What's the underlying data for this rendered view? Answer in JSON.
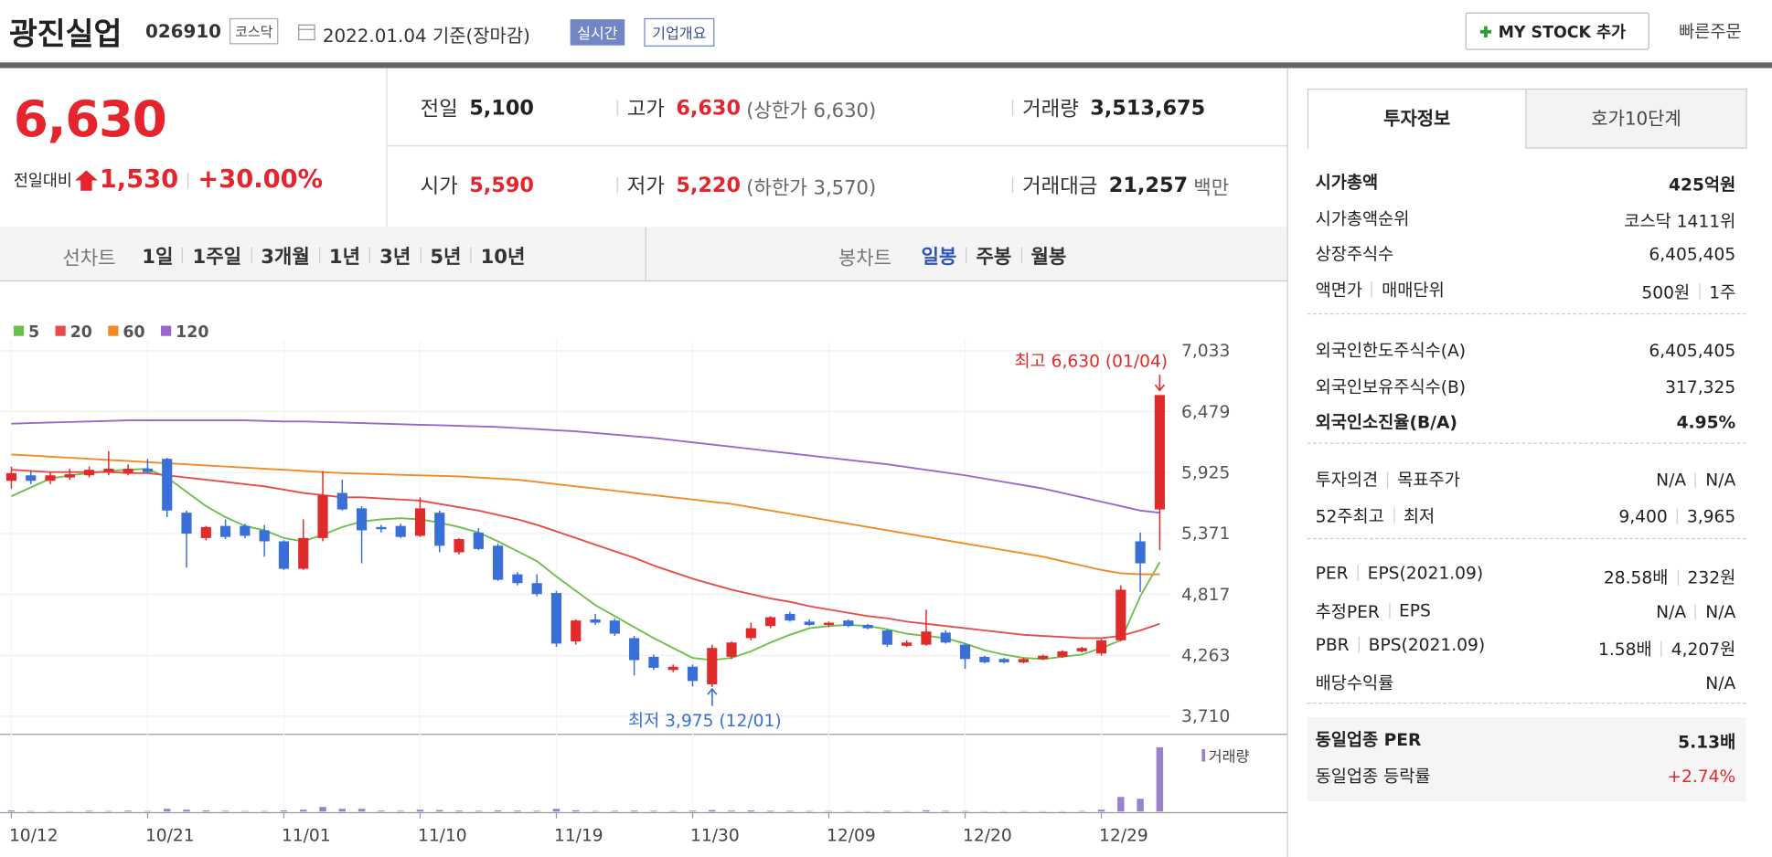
{
  "header": {
    "name": "광진실업",
    "code": "026910",
    "market": "코스닥",
    "date": "2022.01.04 기준(장마감)",
    "badges": [
      "실시간",
      "기업개요"
    ],
    "buttons": [
      "MY STOCK 추가",
      "빠른주문"
    ]
  },
  "price": {
    "current": "6,630",
    "change_label": "전일대비",
    "change": "1,530",
    "rate": "+30.00%"
  },
  "summary": {
    "rows": [
      [
        {
          "label": "전일",
          "value": "5,100"
        },
        {
          "label": "고가",
          "value": "6,630",
          "note": "(상한가 6,630)"
        },
        {
          "label": "거래량",
          "value": "3,513,675"
        }
      ],
      [
        {
          "label": "시가",
          "value": "5,590"
        },
        {
          "label": "저가",
          "value": "5,220",
          "note": "(하한가 3,570)"
        },
        {
          "label": "거래대금",
          "value": "21,257",
          "note": "백만"
        }
      ]
    ]
  },
  "tabs": {
    "line_label": "선차트",
    "periods": [
      "1일",
      "1주일",
      "3개월",
      "1년",
      "3년",
      "5년",
      "10년"
    ],
    "candle_label": "봉차트",
    "candle_periods": [
      "일봉",
      "주봉",
      "월봉"
    ]
  },
  "chart": {
    "type": "candlestick",
    "categories": [
      "10/12",
      null,
      null,
      null,
      null,
      null,
      null,
      "10/21",
      null,
      null,
      null,
      null,
      null,
      null,
      "11/01",
      null,
      null,
      null,
      null,
      null,
      null,
      "11/10",
      null,
      null,
      null,
      null,
      null,
      null,
      "11/19",
      null,
      null,
      null,
      null,
      null,
      null,
      "11/30",
      null,
      null,
      null,
      null,
      null,
      null,
      "12/09",
      null,
      null,
      null,
      null,
      null,
      null,
      "12/20",
      null,
      null,
      null,
      null,
      null,
      null,
      "12/29",
      null,
      null,
      null
    ],
    "ohlc": [
      [
        5850,
        5980,
        5780,
        5920
      ],
      [
        5900,
        5940,
        5820,
        5850
      ],
      [
        5850,
        5930,
        5820,
        5900
      ],
      [
        5880,
        5960,
        5860,
        5910
      ],
      [
        5900,
        5980,
        5880,
        5950
      ],
      [
        5930,
        6120,
        5900,
        5960
      ],
      [
        5920,
        6000,
        5900,
        5960
      ],
      [
        5960,
        6050,
        5920,
        5930
      ],
      [
        6050,
        6060,
        5520,
        5580
      ],
      [
        5560,
        5580,
        5060,
        5370
      ],
      [
        5330,
        5440,
        5310,
        5430
      ],
      [
        5440,
        5500,
        5320,
        5340
      ],
      [
        5440,
        5460,
        5330,
        5350
      ],
      [
        5400,
        5450,
        5160,
        5300
      ],
      [
        5300,
        5310,
        5040,
        5050
      ],
      [
        5050,
        5500,
        5040,
        5330
      ],
      [
        5330,
        5940,
        5300,
        5720
      ],
      [
        5740,
        5860,
        5580,
        5590
      ],
      [
        5600,
        5620,
        5100,
        5400
      ],
      [
        5430,
        5450,
        5380,
        5410
      ],
      [
        5440,
        5460,
        5330,
        5340
      ],
      [
        5350,
        5700,
        5340,
        5600
      ],
      [
        5560,
        5580,
        5200,
        5260
      ],
      [
        5200,
        5330,
        5180,
        5320
      ],
      [
        5380,
        5420,
        5220,
        5230
      ],
      [
        5260,
        5280,
        4940,
        4950
      ],
      [
        5000,
        5020,
        4900,
        4920
      ],
      [
        4920,
        5000,
        4800,
        4820
      ],
      [
        4830,
        4850,
        4340,
        4370
      ],
      [
        4390,
        4590,
        4360,
        4580
      ],
      [
        4590,
        4640,
        4540,
        4560
      ],
      [
        4580,
        4600,
        4440,
        4460
      ],
      [
        4420,
        4440,
        4080,
        4220
      ],
      [
        4250,
        4270,
        4130,
        4150
      ],
      [
        4130,
        4180,
        4110,
        4160
      ],
      [
        4160,
        4180,
        3980,
        4030
      ],
      [
        4000,
        4360,
        3975,
        4330
      ],
      [
        4250,
        4390,
        4230,
        4380
      ],
      [
        4420,
        4560,
        4400,
        4510
      ],
      [
        4530,
        4620,
        4510,
        4610
      ],
      [
        4640,
        4660,
        4570,
        4580
      ],
      [
        4570,
        4590,
        4530,
        4540
      ],
      [
        4540,
        4570,
        4520,
        4560
      ],
      [
        4580,
        4590,
        4520,
        4530
      ],
      [
        4540,
        4550,
        4500,
        4510
      ],
      [
        4490,
        4500,
        4340,
        4360
      ],
      [
        4350,
        4400,
        4340,
        4380
      ],
      [
        4360,
        4680,
        4350,
        4480
      ],
      [
        4470,
        4490,
        4370,
        4380
      ],
      [
        4360,
        4370,
        4140,
        4230
      ],
      [
        4250,
        4260,
        4190,
        4200
      ],
      [
        4230,
        4240,
        4190,
        4200
      ],
      [
        4200,
        4240,
        4190,
        4230
      ],
      [
        4230,
        4270,
        4220,
        4260
      ],
      [
        4250,
        4310,
        4240,
        4300
      ],
      [
        4300,
        4340,
        4290,
        4330
      ],
      [
        4280,
        4410,
        4260,
        4400
      ],
      [
        4400,
        4900,
        4390,
        4860
      ],
      [
        5300,
        5380,
        4840,
        5100
      ],
      [
        5590,
        6630,
        5220,
        6630
      ]
    ],
    "up_color": "#e12b2b",
    "down_color": "#3a6fd8",
    "series": [
      {
        "name": "5",
        "color": "#6cbf4a",
        "values": [
          5710,
          5790,
          5870,
          5900,
          5920,
          5940,
          5950,
          5960,
          5880,
          5750,
          5620,
          5520,
          5440,
          5400,
          5330,
          5300,
          5360,
          5430,
          5480,
          5500,
          5510,
          5500,
          5470,
          5430,
          5380,
          5300,
          5210,
          5120,
          4980,
          4850,
          4720,
          4620,
          4520,
          4420,
          4330,
          4240,
          4220,
          4240,
          4300,
          4380,
          4450,
          4510,
          4530,
          4540,
          4530,
          4500,
          4460,
          4440,
          4420,
          4370,
          4310,
          4270,
          4240,
          4230,
          4250,
          4270,
          4330,
          4400,
          4800,
          5110
        ]
      },
      {
        "name": "20",
        "color": "#e84a4a",
        "values": [
          5950,
          5940,
          5930,
          5930,
          5930,
          5930,
          5920,
          5920,
          5900,
          5880,
          5860,
          5840,
          5820,
          5800,
          5770,
          5740,
          5720,
          5700,
          5700,
          5690,
          5680,
          5670,
          5640,
          5610,
          5580,
          5540,
          5500,
          5450,
          5390,
          5330,
          5270,
          5210,
          5150,
          5080,
          5020,
          4960,
          4910,
          4860,
          4820,
          4780,
          4750,
          4710,
          4680,
          4650,
          4620,
          4600,
          4570,
          4550,
          4530,
          4510,
          4490,
          4470,
          4450,
          4440,
          4430,
          4420,
          4420,
          4440,
          4490,
          4550
        ]
      },
      {
        "name": "60",
        "color": "#f08a24",
        "values": [
          6090,
          6080,
          6070,
          6060,
          6050,
          6040,
          6030,
          6020,
          6010,
          6000,
          5990,
          5980,
          5970,
          5960,
          5950,
          5940,
          5930,
          5920,
          5915,
          5910,
          5905,
          5900,
          5895,
          5890,
          5880,
          5870,
          5860,
          5840,
          5820,
          5800,
          5780,
          5760,
          5740,
          5720,
          5700,
          5680,
          5660,
          5640,
          5610,
          5580,
          5550,
          5520,
          5490,
          5460,
          5430,
          5400,
          5370,
          5340,
          5310,
          5280,
          5250,
          5220,
          5190,
          5160,
          5120,
          5080,
          5040,
          5010,
          5000,
          5000
        ]
      },
      {
        "name": "120",
        "color": "#9966cc",
        "values": [
          6370,
          6375,
          6380,
          6385,
          6390,
          6395,
          6400,
          6400,
          6400,
          6400,
          6400,
          6400,
          6400,
          6395,
          6390,
          6390,
          6385,
          6380,
          6375,
          6370,
          6365,
          6360,
          6355,
          6350,
          6345,
          6340,
          6330,
          6320,
          6310,
          6300,
          6285,
          6270,
          6255,
          6240,
          6220,
          6200,
          6180,
          6160,
          6140,
          6120,
          6100,
          6080,
          6060,
          6040,
          6020,
          6000,
          5975,
          5950,
          5925,
          5900,
          5870,
          5840,
          5810,
          5780,
          5740,
          5700,
          5660,
          5620,
          5580,
          5560
        ]
      }
    ],
    "ylim": [
      3710,
      7033
    ],
    "yticks": [
      {
        "value": 3710,
        "label": "3,710"
      },
      {
        "value": 4263,
        "label": "4,263"
      },
      {
        "value": 4817,
        "label": "4,817"
      },
      {
        "value": 5371,
        "label": "5,371"
      },
      {
        "value": 5925,
        "label": "5,925"
      },
      {
        "value": 6479,
        "label": "6,479"
      },
      {
        "value": 7033,
        "label": "7,033"
      }
    ],
    "volume": {
      "name": "거래량",
      "color": "#9a82c8",
      "ylim": [
        0,
        3600000
      ],
      "values": [
        60000,
        30000,
        20000,
        20000,
        40000,
        30000,
        50000,
        30000,
        150000,
        100000,
        60000,
        40000,
        30000,
        30000,
        60000,
        100000,
        250000,
        150000,
        150000,
        50000,
        40000,
        100000,
        80000,
        50000,
        40000,
        60000,
        50000,
        40000,
        150000,
        70000,
        30000,
        40000,
        50000,
        40000,
        30000,
        50000,
        80000,
        50000,
        60000,
        40000,
        40000,
        30000,
        30000,
        20000,
        20000,
        40000,
        20000,
        70000,
        40000,
        30000,
        20000,
        20000,
        20000,
        20000,
        20000,
        30000,
        100000,
        800000,
        700000,
        3513675
      ]
    },
    "annotations": {
      "high": "최고 6,630 (01/04)",
      "low": "최저 3,975 (12/01)"
    }
  },
  "info": {
    "tabs": [
      "투자정보",
      "호가10단계"
    ],
    "groups": [
      [
        {
          "label": [
            "시가총액"
          ],
          "value": [
            "425억원"
          ]
        },
        {
          "label": [
            "시가총액순위"
          ],
          "value": [
            "코스닥 1411위"
          ]
        },
        {
          "label": [
            "상장주식수"
          ],
          "value": [
            "6,405,405"
          ]
        },
        {
          "label": [
            "액면가",
            "매매단위"
          ],
          "value": [
            "500원",
            "1주"
          ]
        }
      ],
      [
        {
          "label": [
            "외국인한도주식수(A)"
          ],
          "value": [
            "6,405,405"
          ]
        },
        {
          "label": [
            "외국인보유주식수(B)"
          ],
          "value": [
            "317,325"
          ]
        },
        {
          "label": [
            "외국인소진율(B/A)"
          ],
          "value": [
            "4.95%"
          ]
        }
      ],
      [
        {
          "label": [
            "투자의견",
            "목표주가"
          ],
          "value": [
            "N/A",
            "N/A"
          ]
        },
        {
          "label": [
            "52주최고",
            "최저"
          ],
          "value": [
            "9,400",
            "3,965"
          ]
        }
      ],
      [
        {
          "label": [
            "PER",
            "EPS(2021.09)"
          ],
          "value": [
            "28.58배",
            "232원"
          ]
        },
        {
          "label": [
            "추정PER",
            "EPS"
          ],
          "value": [
            "N/A",
            "N/A"
          ]
        },
        {
          "label": [
            "PBR",
            "BPS(2021.09)"
          ],
          "value": [
            "1.58배",
            "4,207원"
          ]
        },
        {
          "label": [
            "배당수익률"
          ],
          "value": [
            "N/A"
          ]
        }
      ],
      [
        {
          "label": [
            "동일업종 PER"
          ],
          "value": [
            "5.13배"
          ]
        },
        {
          "label": [
            "동일업종 등락률"
          ],
          "value": [
            "+2.74%"
          ]
        }
      ]
    ]
  }
}
